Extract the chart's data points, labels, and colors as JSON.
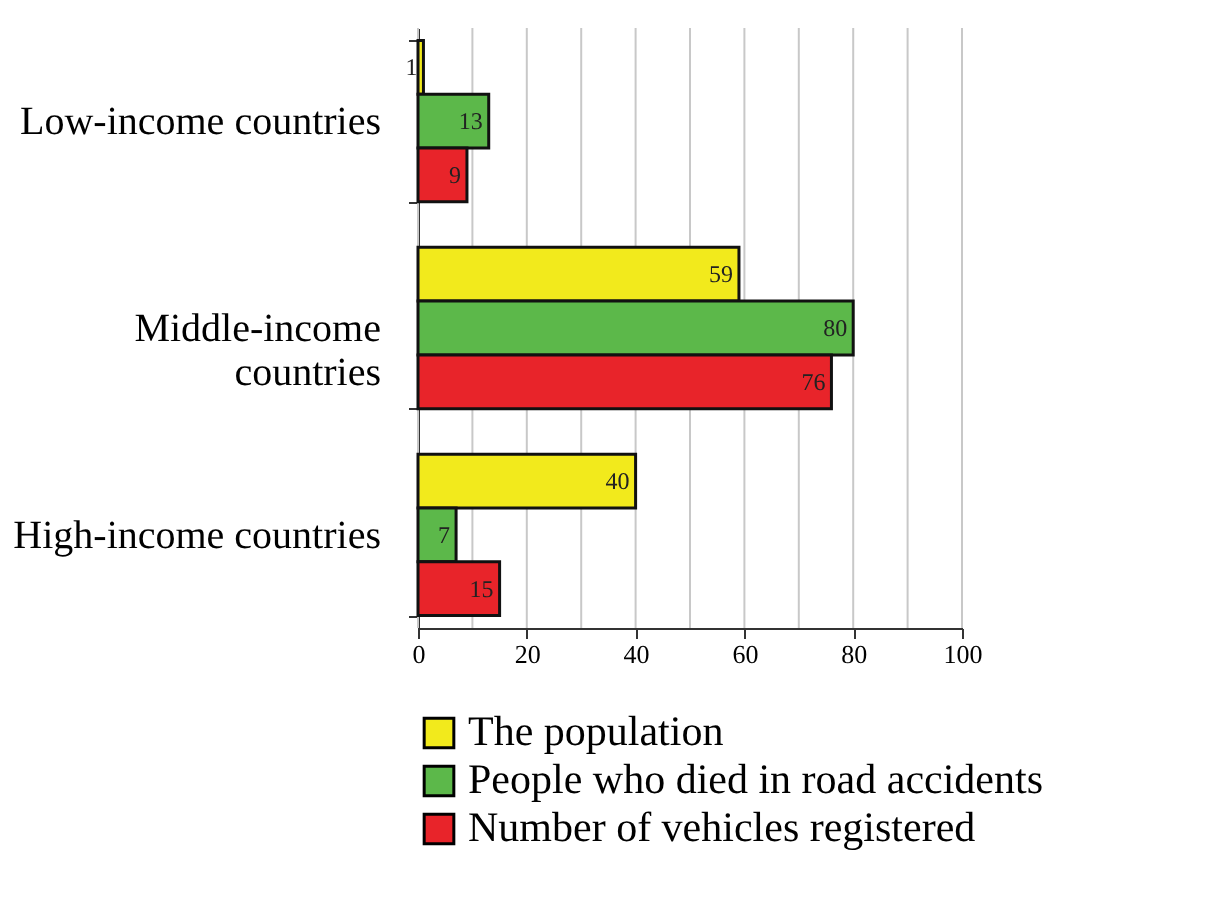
{
  "chart_data": {
    "type": "bar",
    "orientation": "horizontal",
    "categories": [
      "Low-income countries",
      "Middle-income countries",
      "High-income countries"
    ],
    "series": [
      {
        "name": "The population",
        "color": "#f2ea1c",
        "values": [
          1,
          59,
          40
        ]
      },
      {
        "name": "People who died in road accidents",
        "color": "#5cb84a",
        "values": [
          13,
          80,
          7
        ]
      },
      {
        "name": "Number of vehicles registered",
        "color": "#e8242a",
        "values": [
          9,
          76,
          15
        ]
      }
    ],
    "xlim": [
      0,
      100
    ],
    "xticks": [
      0,
      {
        "value": 10,
        "label": null
      },
      20,
      {
        "value": 30,
        "label": null
      },
      40,
      {
        "value": 50,
        "label": null
      },
      60,
      {
        "value": 70,
        "label": null
      },
      80,
      {
        "value": 90,
        "label": null
      },
      100
    ],
    "grid": "x",
    "legend": "bottom",
    "data_labels": true
  }
}
